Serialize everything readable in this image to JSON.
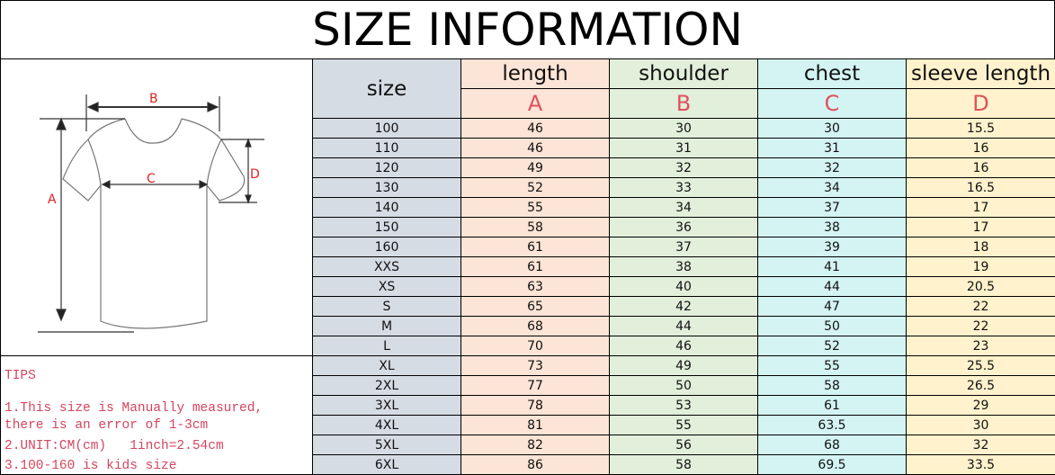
{
  "title": "SIZE INFORMATION",
  "diagram": {
    "labels": {
      "A": "A",
      "B": "B",
      "C": "C",
      "D": "D"
    }
  },
  "tips": {
    "heading": "TIPS",
    "lines": [
      "1.This size is Manually measured,",
      "there is an error of 1-3cm",
      "2.UNIT:CM(cm)   1inch=2.54cm",
      "3.100-160 is kids size"
    ]
  },
  "colors": {
    "size": "#d6dce4",
    "length": "#fce4d6",
    "shoulder": "#e2efda",
    "chest": "#d4f3f3",
    "sleeve": "#fff2cc",
    "letter": "#e0505f",
    "tips": "#d4455f"
  },
  "table": {
    "headers": [
      {
        "label": "size",
        "letter": ""
      },
      {
        "label": "length",
        "letter": "A"
      },
      {
        "label": "shoulder",
        "letter": "B"
      },
      {
        "label": "chest",
        "letter": "C"
      },
      {
        "label": "sleeve length",
        "letter": "D"
      }
    ],
    "rows": [
      [
        "100",
        "46",
        "30",
        "30",
        "15.5"
      ],
      [
        "110",
        "46",
        "31",
        "31",
        "16"
      ],
      [
        "120",
        "49",
        "32",
        "32",
        "16"
      ],
      [
        "130",
        "52",
        "33",
        "34",
        "16.5"
      ],
      [
        "140",
        "55",
        "34",
        "37",
        "17"
      ],
      [
        "150",
        "58",
        "36",
        "38",
        "17"
      ],
      [
        "160",
        "61",
        "37",
        "39",
        "18"
      ],
      [
        "XXS",
        "61",
        "38",
        "41",
        "19"
      ],
      [
        "XS",
        "63",
        "40",
        "44",
        "20.5"
      ],
      [
        "S",
        "65",
        "42",
        "47",
        "22"
      ],
      [
        "M",
        "68",
        "44",
        "50",
        "22"
      ],
      [
        "L",
        "70",
        "46",
        "52",
        "23"
      ],
      [
        "XL",
        "73",
        "49",
        "55",
        "25.5"
      ],
      [
        "2XL",
        "77",
        "50",
        "58",
        "26.5"
      ],
      [
        "3XL",
        "78",
        "53",
        "61",
        "29"
      ],
      [
        "4XL",
        "81",
        "55",
        "63.5",
        "30"
      ],
      [
        "5XL",
        "82",
        "56",
        "68",
        "32"
      ],
      [
        "6XL",
        "86",
        "58",
        "69.5",
        "33.5"
      ]
    ]
  }
}
